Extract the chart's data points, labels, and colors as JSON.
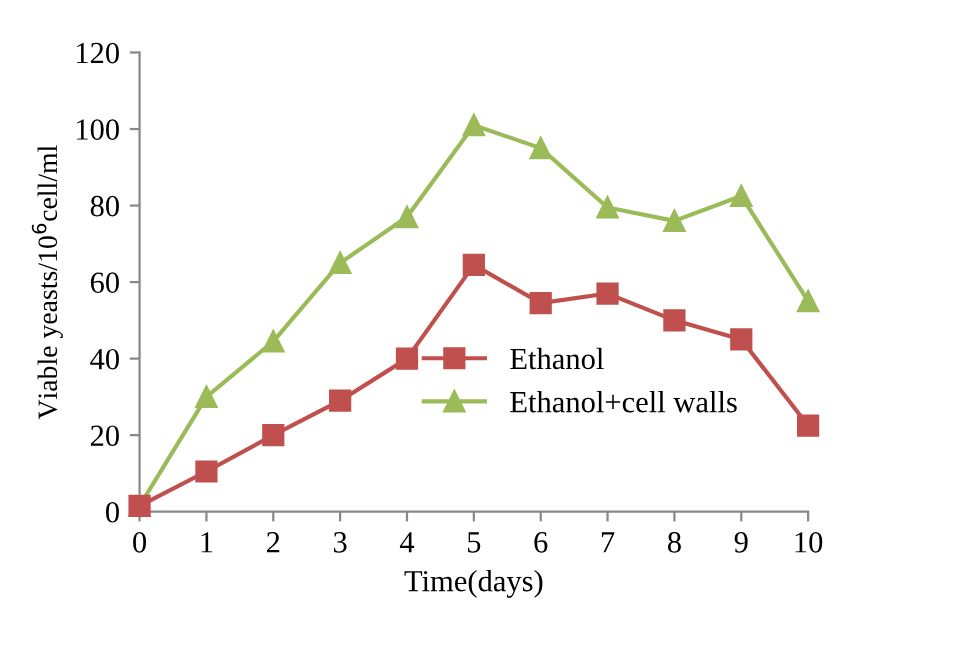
{
  "chart_data": {
    "type": "line",
    "xlabel": "Time(days)",
    "ylabel": "Viable yeasts/10$^{6}$cell/ml",
    "x": [
      0,
      1,
      2,
      3,
      4,
      5,
      6,
      7,
      8,
      9,
      10
    ],
    "series": [
      {
        "name": "Ethanol",
        "color": "#c0504d",
        "marker": "square",
        "values": [
          1.5,
          10.5,
          20,
          29,
          40,
          64.5,
          54.5,
          57,
          50,
          45,
          22.5
        ]
      },
      {
        "name": "Ethanol+cell walls",
        "color": "#9bbb59",
        "marker": "triangle",
        "values": [
          1.5,
          30,
          44.5,
          65,
          77,
          101,
          95,
          79.5,
          76,
          82.5,
          55
        ]
      }
    ],
    "xlim": [
      0,
      10
    ],
    "xticks": [
      0,
      1,
      2,
      3,
      4,
      5,
      6,
      7,
      8,
      9,
      10
    ],
    "ylim": [
      0,
      120
    ],
    "yticks": [
      0,
      20,
      40,
      60,
      80,
      100,
      120
    ],
    "grid": false,
    "legend": "center",
    "line_style": "solid"
  }
}
